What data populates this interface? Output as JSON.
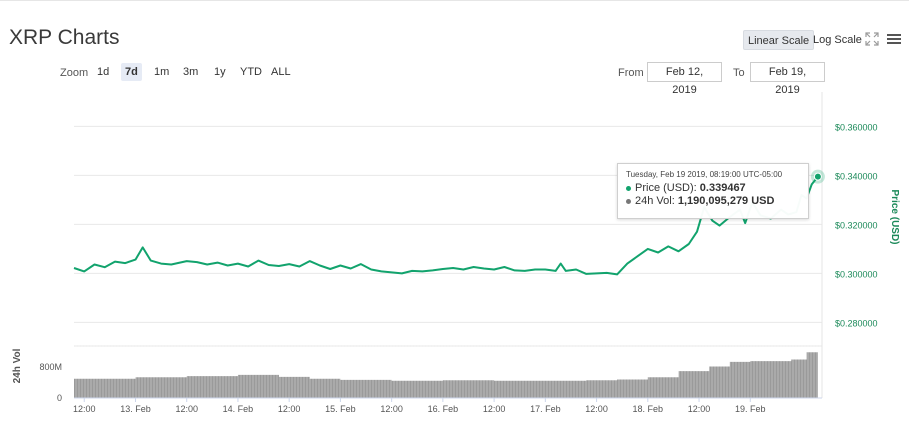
{
  "header": {
    "title": "XRP Charts"
  },
  "scale": {
    "linear_label": "Linear Scale",
    "log_label": "Log Scale",
    "active": "linear"
  },
  "icons": {
    "fullscreen": "fullscreen-icon",
    "menu": "hamburger-menu-icon"
  },
  "zoom": {
    "label": "Zoom",
    "options": [
      "1d",
      "7d",
      "1m",
      "3m",
      "1y",
      "YTD",
      "ALL"
    ],
    "active": "7d"
  },
  "range": {
    "from_label": "From",
    "from_value": "Feb 12, 2019",
    "to_label": "To",
    "to_value": "Feb 19, 2019"
  },
  "tooltip": {
    "date": "Tuesday, Feb 19 2019, 08:19:00 UTC-05:00",
    "price_label": "Price (USD):",
    "price_value": "0.339467",
    "vol_label": "24h Vol:",
    "vol_value": "1,190,095,279 USD"
  },
  "colors": {
    "price_line": "#12a36d",
    "volume_bar": "#8f8f8f",
    "price_axis_text": "#1c8a5a",
    "grid": "#e8e8e8"
  },
  "chart_data": {
    "type": "line",
    "x_axis": {
      "tick_labels": [
        "12:00",
        "13. Feb",
        "12:00",
        "14. Feb",
        "12:00",
        "15. Feb",
        "12:00",
        "16. Feb",
        "12:00",
        "17. Feb",
        "12:00",
        "18. Feb",
        "12:00",
        "19. Feb"
      ],
      "start_day": 12.4,
      "end_day": 19.7
    },
    "price_axis": {
      "label": "Price (USD)",
      "ylim": [
        0.272,
        0.374
      ],
      "ticks": [
        0.28,
        0.3,
        0.32,
        0.34,
        0.36
      ],
      "tick_labels": [
        "$0.280000",
        "$0.300000",
        "$0.320000",
        "$0.340000",
        "$0.360000"
      ],
      "position": "right"
    },
    "volume_axis": {
      "label": "24h Vol",
      "ylim": [
        0,
        1300000000
      ],
      "ticks": [
        0,
        800000000
      ],
      "tick_labels": [
        "0",
        "800M"
      ],
      "position": "left"
    },
    "series": [
      {
        "name": "Price (USD)",
        "x": [
          12.4,
          12.5,
          12.6,
          12.7,
          12.8,
          12.9,
          13.0,
          13.07,
          13.15,
          13.25,
          13.35,
          13.5,
          13.6,
          13.7,
          13.8,
          13.9,
          14.0,
          14.1,
          14.2,
          14.3,
          14.4,
          14.5,
          14.6,
          14.7,
          14.8,
          14.9,
          15.0,
          15.1,
          15.2,
          15.3,
          15.4,
          15.5,
          15.6,
          15.7,
          15.8,
          15.9,
          16.0,
          16.1,
          16.2,
          16.3,
          16.4,
          16.5,
          16.6,
          16.7,
          16.8,
          16.9,
          17.0,
          17.1,
          17.15,
          17.2,
          17.3,
          17.4,
          17.5,
          17.6,
          17.7,
          17.8,
          17.9,
          18.0,
          18.1,
          18.2,
          18.3,
          18.4,
          18.48,
          18.55,
          18.63,
          18.7,
          18.8,
          18.9,
          18.95,
          19.02,
          19.1,
          19.2,
          19.3,
          19.37,
          19.45,
          19.5,
          19.55,
          19.6,
          19.66
        ],
        "values": [
          0.3022,
          0.3008,
          0.3036,
          0.3025,
          0.3048,
          0.3042,
          0.3056,
          0.3106,
          0.3052,
          0.304,
          0.3036,
          0.305,
          0.3046,
          0.3036,
          0.3044,
          0.3032,
          0.304,
          0.3028,
          0.3052,
          0.3034,
          0.303,
          0.3038,
          0.3028,
          0.305,
          0.3032,
          0.3018,
          0.3032,
          0.302,
          0.3038,
          0.3016,
          0.3008,
          0.3004,
          0.3,
          0.301,
          0.3008,
          0.3012,
          0.3018,
          0.3022,
          0.3016,
          0.3026,
          0.302,
          0.3016,
          0.3026,
          0.3012,
          0.301,
          0.3016,
          0.3016,
          0.301,
          0.304,
          0.301,
          0.3016,
          0.2998,
          0.3,
          0.3002,
          0.2996,
          0.304,
          0.307,
          0.31,
          0.3085,
          0.311,
          0.309,
          0.312,
          0.317,
          0.327,
          0.3215,
          0.3195,
          0.323,
          0.326,
          0.3205,
          0.329,
          0.3237,
          0.3224,
          0.326,
          0.324,
          0.325,
          0.332,
          0.3306,
          0.3364,
          0.3395
        ]
      },
      {
        "name": "24h Vol",
        "x": [
          12.4,
          13.0,
          13.5,
          14.0,
          14.4,
          14.7,
          15.0,
          15.5,
          16.0,
          16.5,
          17.0,
          17.4,
          17.7,
          18.0,
          18.3,
          18.6,
          18.8,
          19.0,
          19.2,
          19.4,
          19.47,
          19.55,
          19.66
        ],
        "values": [
          500000000,
          540000000,
          570000000,
          600000000,
          550000000,
          500000000,
          470000000,
          450000000,
          460000000,
          450000000,
          450000000,
          460000000,
          480000000,
          540000000,
          700000000,
          820000000,
          940000000,
          960000000,
          960000000,
          1000000000,
          1000000000,
          1190000000,
          1190000000
        ]
      }
    ],
    "highlight": {
      "x": 19.66,
      "price": 0.339467,
      "volume": 1190095279
    },
    "grid": true,
    "legend": "none"
  }
}
